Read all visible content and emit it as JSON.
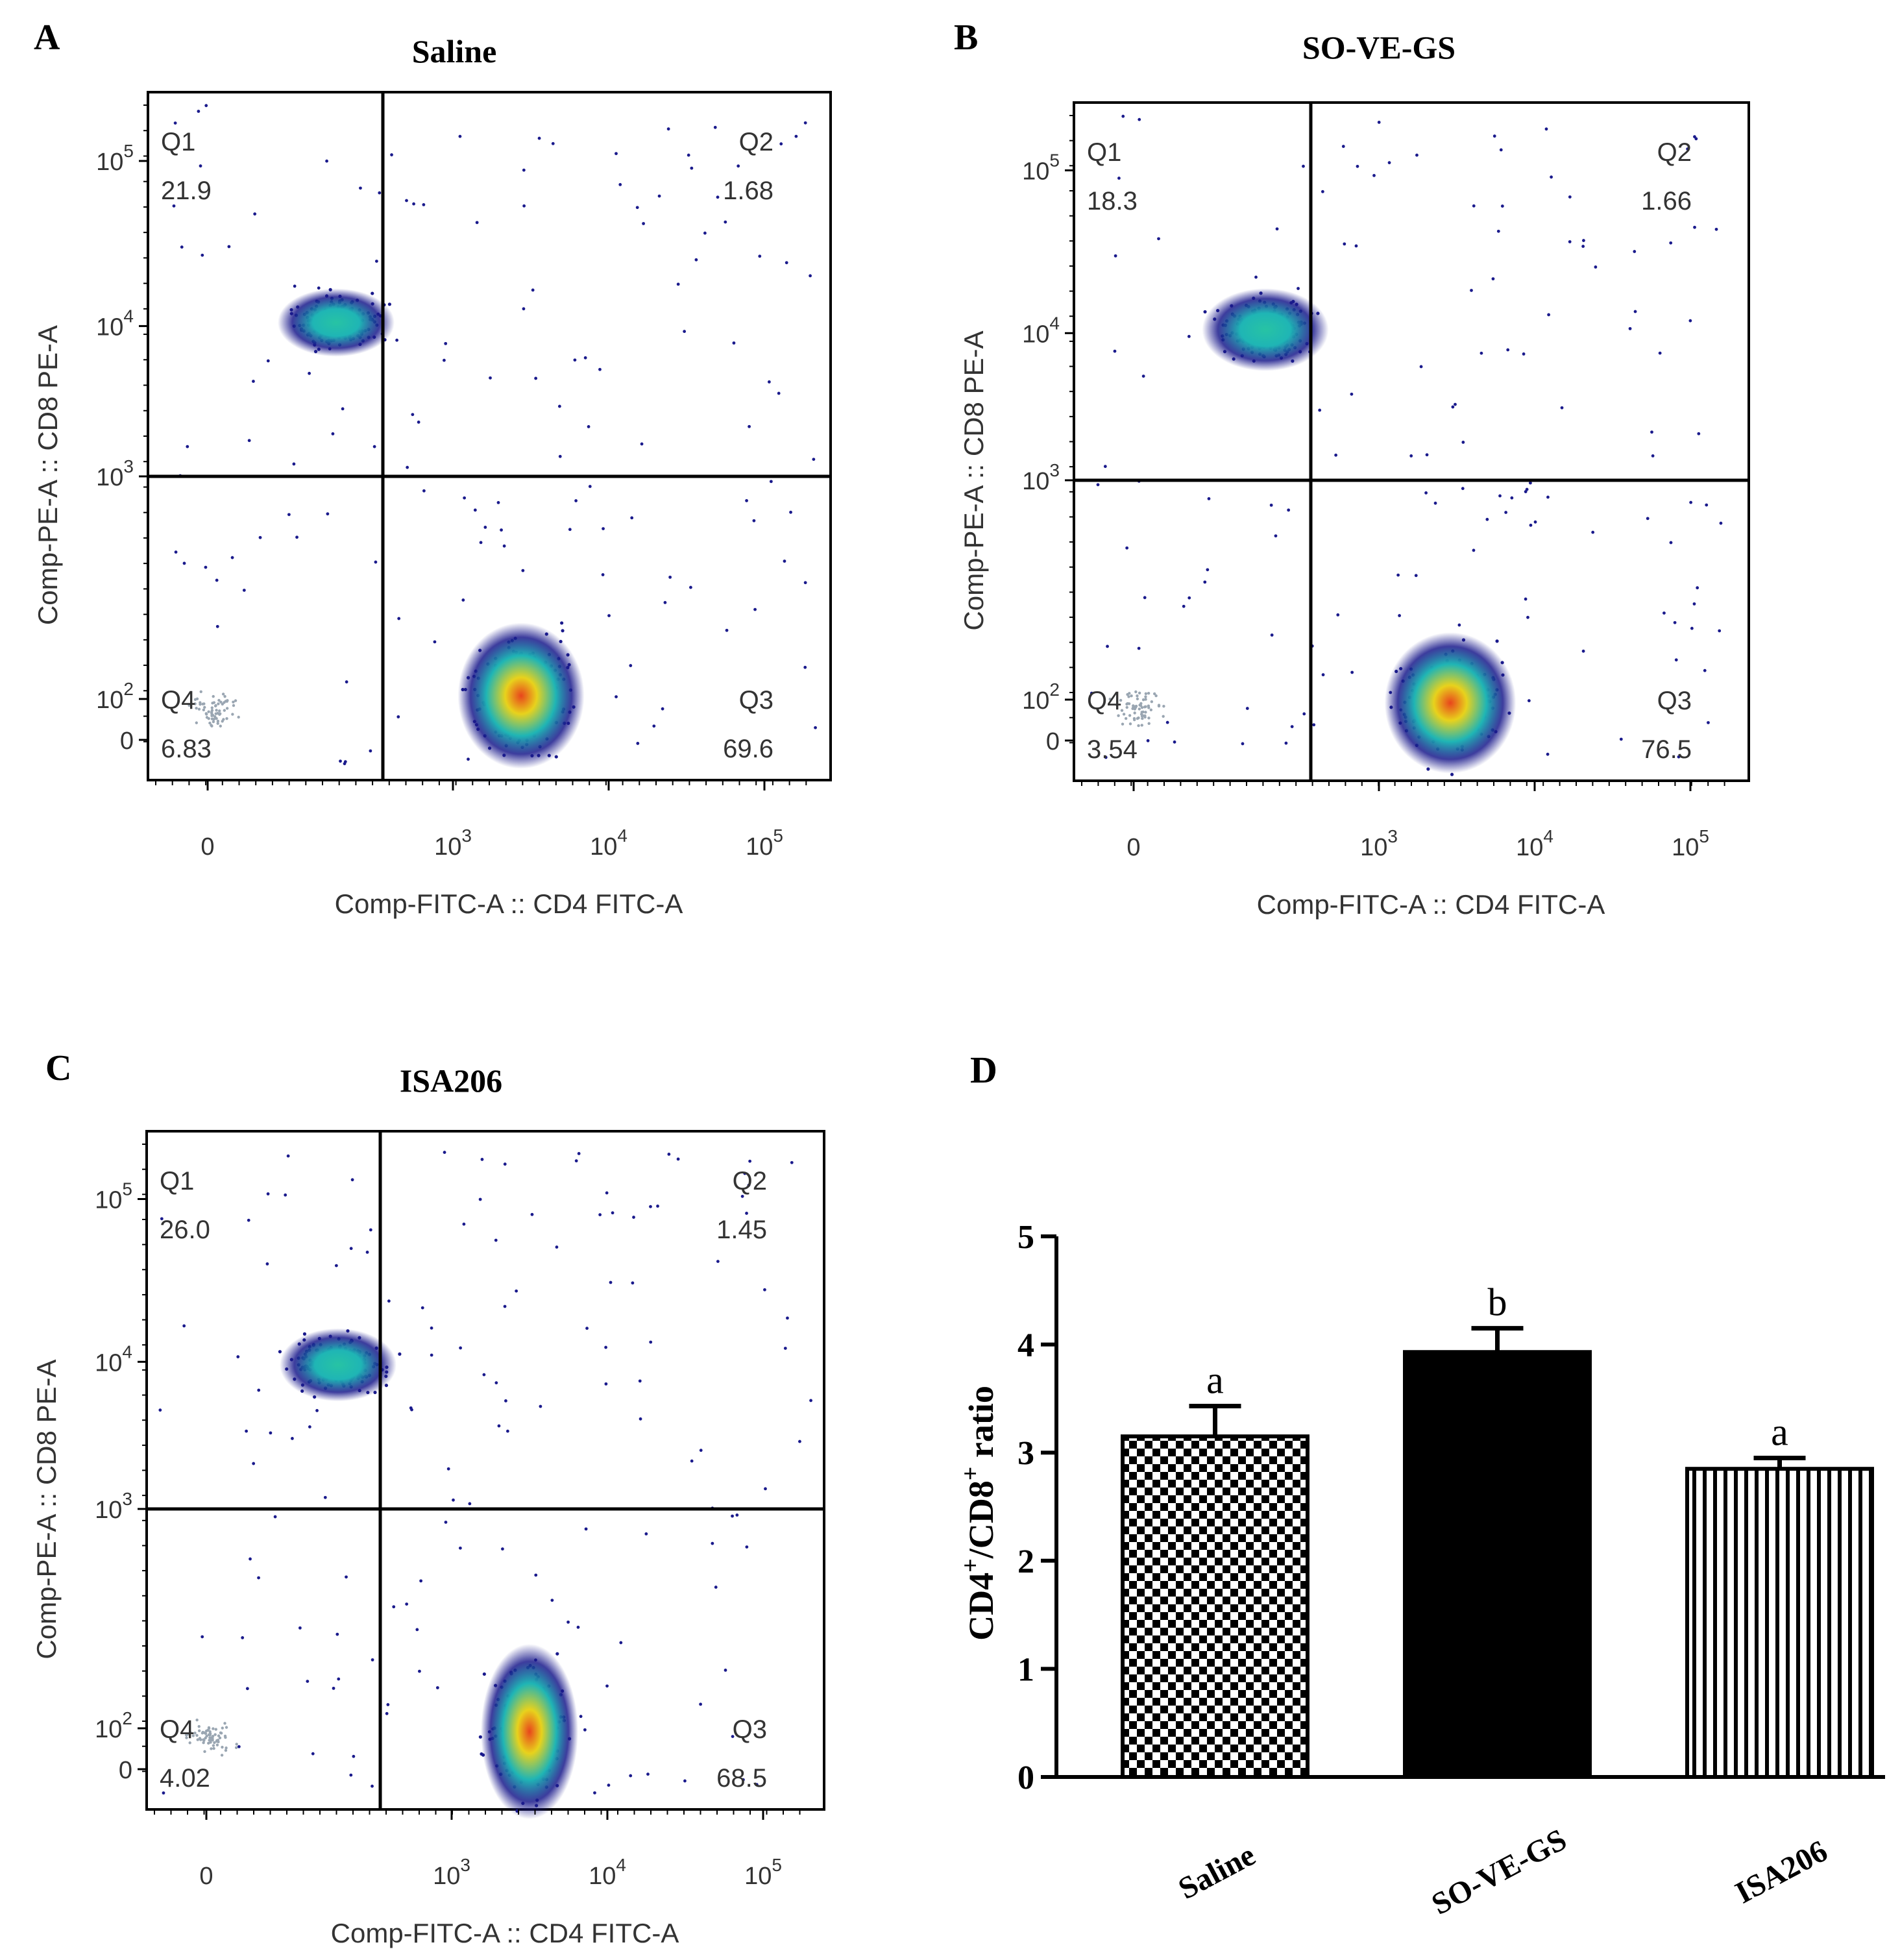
{
  "colors": {
    "axis": "#000000",
    "text": "#333333",
    "density_low": "#1a1a8c",
    "density_mid": "#1fb5b5",
    "density_high": "#e8d21c",
    "density_peak": "#e8451c",
    "bar_solid": "#000000"
  },
  "chart_data": [
    {
      "type": "scatter",
      "panel": "A",
      "title": "Saline",
      "xlabel": "Comp-FITC-A :: CD4 FITC-A",
      "ylabel": "Comp-PE-A :: CD8 PE-A",
      "x_ticks": [
        "0",
        "10",
        "10",
        "10"
      ],
      "x_tick_exp": [
        "",
        "3",
        "4",
        "5"
      ],
      "y_ticks": [
        "0",
        "10",
        "10",
        "10",
        "10"
      ],
      "y_tick_exp": [
        "",
        "2",
        "3",
        "4",
        "5"
      ],
      "quadrants": [
        {
          "name": "Q1",
          "value": "21.9"
        },
        {
          "name": "Q2",
          "value": "1.68"
        },
        {
          "name": "Q3",
          "value": "69.6"
        },
        {
          "name": "Q4",
          "value": "6.83"
        }
      ]
    },
    {
      "type": "scatter",
      "panel": "B",
      "title": "SO-VE-GS",
      "xlabel": "Comp-FITC-A :: CD4 FITC-A",
      "ylabel": "Comp-PE-A :: CD8 PE-A",
      "x_ticks": [
        "0",
        "10",
        "10",
        "10"
      ],
      "x_tick_exp": [
        "",
        "3",
        "4",
        "5"
      ],
      "y_ticks": [
        "0",
        "10",
        "10",
        "10",
        "10"
      ],
      "y_tick_exp": [
        "",
        "2",
        "3",
        "4",
        "5"
      ],
      "quadrants": [
        {
          "name": "Q1",
          "value": "18.3"
        },
        {
          "name": "Q2",
          "value": "1.66"
        },
        {
          "name": "Q3",
          "value": "76.5"
        },
        {
          "name": "Q4",
          "value": "3.54"
        }
      ]
    },
    {
      "type": "scatter",
      "panel": "C",
      "title": "ISA206",
      "xlabel": "Comp-FITC-A :: CD4 FITC-A",
      "ylabel": "Comp-PE-A :: CD8 PE-A",
      "x_ticks": [
        "0",
        "10",
        "10",
        "10"
      ],
      "x_tick_exp": [
        "",
        "3",
        "4",
        "5"
      ],
      "y_ticks": [
        "0",
        "10",
        "10",
        "10",
        "10"
      ],
      "y_tick_exp": [
        "",
        "2",
        "3",
        "4",
        "5"
      ],
      "quadrants": [
        {
          "name": "Q1",
          "value": "26.0"
        },
        {
          "name": "Q2",
          "value": "1.45"
        },
        {
          "name": "Q3",
          "value": "68.5"
        },
        {
          "name": "Q4",
          "value": "4.02"
        }
      ]
    },
    {
      "type": "bar",
      "panel": "D",
      "title": "",
      "ylabel_parts": [
        "CD4",
        "+",
        "/CD8",
        "+",
        " ratio"
      ],
      "categories": [
        "Saline",
        "SO-VE-GS",
        "ISA206"
      ],
      "values": [
        3.15,
        3.93,
        2.85
      ],
      "errors": [
        0.28,
        0.22,
        0.1
      ],
      "significance": [
        "a",
        "b",
        "a"
      ],
      "patterns": [
        "checker",
        "solid",
        "vstripes"
      ],
      "ylim": [
        0,
        5
      ],
      "yticks": [
        "0",
        "1",
        "2",
        "3",
        "4",
        "5"
      ]
    }
  ]
}
